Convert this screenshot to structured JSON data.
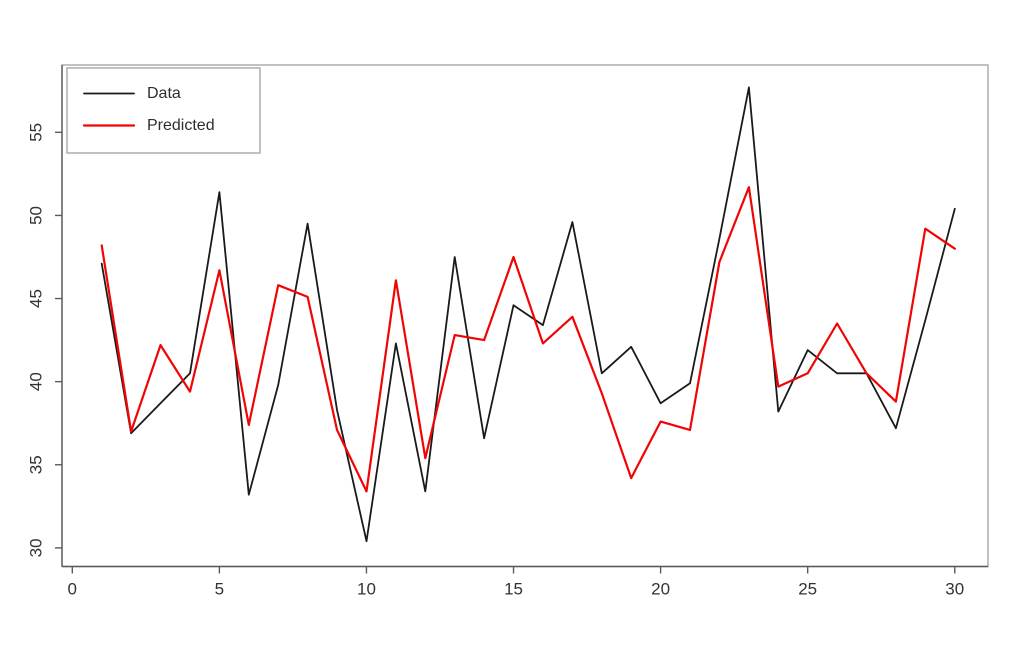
{
  "chart_data": {
    "type": "line",
    "x": [
      1,
      2,
      3,
      4,
      5,
      6,
      7,
      8,
      9,
      10,
      11,
      12,
      13,
      14,
      15,
      16,
      17,
      18,
      19,
      20,
      21,
      22,
      23,
      24,
      25,
      26,
      27,
      28,
      29,
      30
    ],
    "series": [
      {
        "name": "Data",
        "color": "#1a1a1a",
        "line_width": 1.8,
        "values": [
          47.1,
          36.9,
          38.7,
          40.5,
          51.4,
          33.2,
          39.8,
          49.5,
          38.3,
          30.4,
          42.3,
          33.4,
          47.5,
          36.6,
          44.6,
          43.4,
          49.6,
          40.5,
          42.1,
          38.7,
          39.9,
          48.6,
          57.7,
          38.2,
          41.9,
          40.5,
          40.5,
          37.2,
          43.7,
          50.4
        ]
      },
      {
        "name": "Predicted",
        "color": "#f00505",
        "line_width": 2.2,
        "values": [
          48.2,
          37.0,
          42.2,
          39.4,
          46.7,
          37.4,
          45.8,
          45.1,
          37.1,
          33.4,
          46.1,
          35.4,
          42.8,
          42.5,
          47.5,
          42.3,
          43.9,
          39.3,
          34.2,
          37.6,
          37.1,
          47.2,
          51.7,
          39.7,
          40.5,
          43.5,
          40.5,
          38.8,
          49.2,
          48.0
        ]
      }
    ],
    "title": "",
    "xlabel": "",
    "ylabel": "",
    "x_ticks": [
      0,
      5,
      10,
      15,
      20,
      25,
      30
    ],
    "y_ticks": [
      30,
      35,
      40,
      45,
      50,
      55
    ],
    "xlim": [
      -0.35,
      31.13
    ],
    "ylim": [
      28.88,
      59.05
    ],
    "grid": false,
    "legend": {
      "position": "topleft",
      "entries": [
        "Data",
        "Predicted"
      ]
    },
    "frame_color": "#a0a0a0",
    "axis_color": "#5a5a5a",
    "tick_label_color": "#333333",
    "legend_text_color": "#2e2e2e"
  }
}
